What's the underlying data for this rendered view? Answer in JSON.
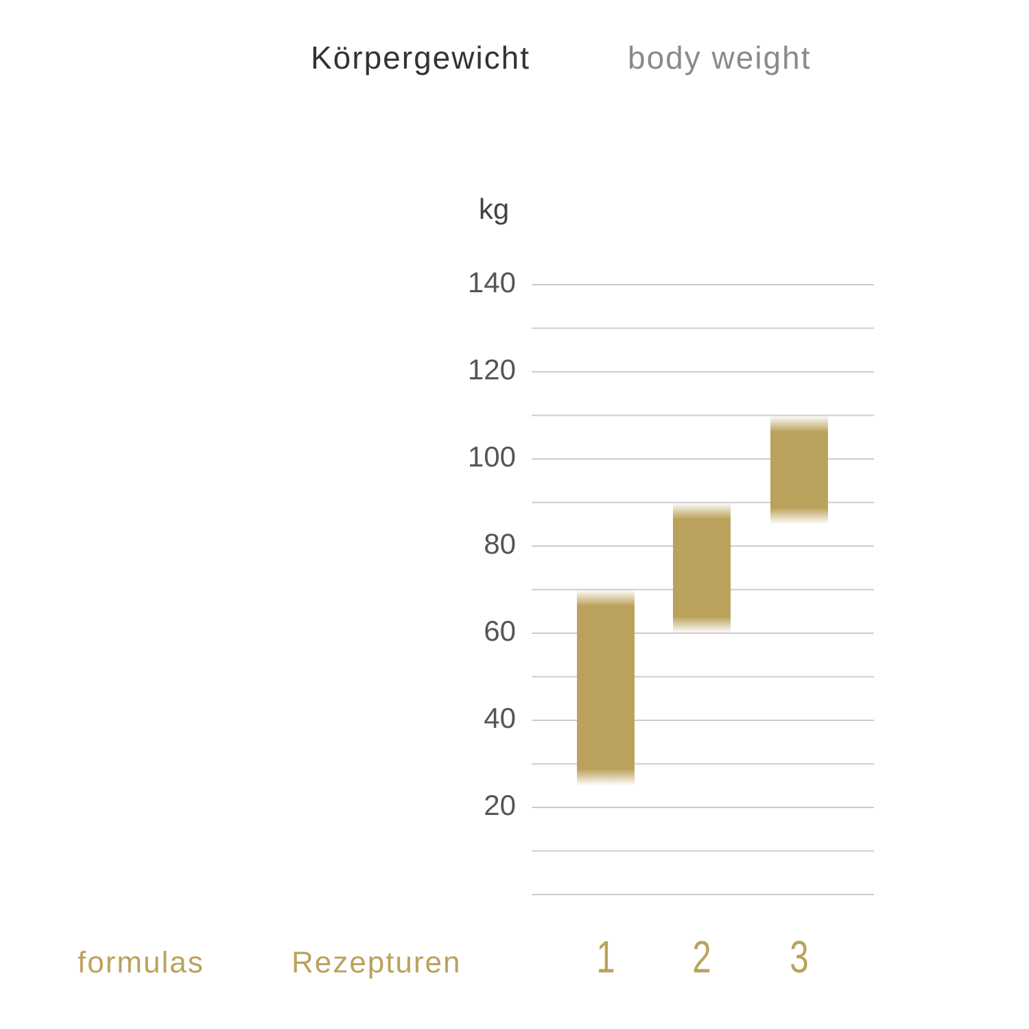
{
  "chart_data": {
    "type": "floating-bar",
    "title": "Körpergewicht",
    "subtitle": "body weight",
    "y_label": "kg",
    "x_label": "formulas",
    "x_label_de": "Rezepturen",
    "categories": [
      "1",
      "2",
      "3"
    ],
    "low": [
      25,
      60,
      85
    ],
    "high": [
      70,
      90,
      110
    ],
    "color": "#bba25c",
    "ylim": [
      0,
      140
    ],
    "yticks": [
      20,
      40,
      60,
      80,
      100,
      120,
      140
    ],
    "minor_yticks": [
      0,
      10,
      30,
      50,
      70,
      90,
      110,
      130
    ],
    "grid": true
  }
}
